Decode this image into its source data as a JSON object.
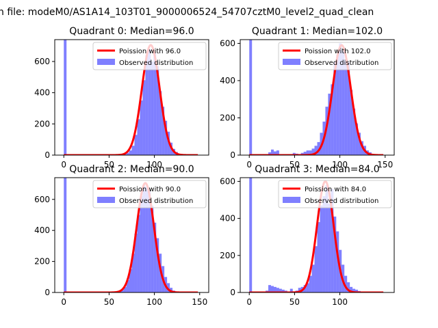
{
  "figure": {
    "suptitle": "n file: modeM0/AS1A14_103T01_9000006524_54707cztM0_level2_quad_clean"
  },
  "colors": {
    "hist": "#0000ff",
    "fit": "#ff0000",
    "axes": "#000000"
  },
  "chart_data": [
    {
      "type": "bar",
      "title": "Quadrant 0: Median=96.0",
      "xlim": [
        -10,
        160
      ],
      "ylim": [
        0,
        740
      ],
      "xticks": [
        0,
        50,
        100
      ],
      "yticks": [
        0,
        200,
        400,
        600
      ],
      "legend": {
        "position": "top-right",
        "fit_label": "Poission with 96.0",
        "hist_label": "Observed distribution"
      },
      "lambda": 96.0,
      "fit_peak": 705,
      "bin_width": 3,
      "bins": [
        0,
        66,
        69,
        72,
        75,
        78,
        81,
        84,
        87,
        90,
        93,
        96,
        99,
        102,
        105,
        108,
        111,
        114,
        117,
        120,
        123,
        126,
        129
      ],
      "counts": [
        740,
        5,
        15,
        30,
        60,
        130,
        230,
        350,
        480,
        640,
        680,
        600,
        655,
        570,
        410,
        310,
        220,
        150,
        80,
        40,
        20,
        8,
        3
      ]
    },
    {
      "type": "bar",
      "title": "Quadrant 1: Median=102.0",
      "xlim": [
        -10,
        160
      ],
      "ylim": [
        0,
        620
      ],
      "xticks": [
        0,
        50,
        100,
        150
      ],
      "yticks": [
        0,
        200,
        400,
        600
      ],
      "legend": {
        "position": "top-right",
        "fit_label": "Poission with 102.0",
        "hist_label": "Observed distribution"
      },
      "lambda": 102.0,
      "fit_peak": 590,
      "bin_width": 3,
      "bins": [
        0,
        18,
        21,
        24,
        27,
        30,
        45,
        48,
        51,
        54,
        57,
        60,
        63,
        66,
        69,
        72,
        75,
        78,
        81,
        84,
        87,
        90,
        93,
        96,
        99,
        102,
        105,
        108,
        111,
        114,
        117,
        120,
        123,
        126,
        129,
        132,
        135
      ],
      "counts": [
        620,
        5,
        15,
        30,
        20,
        25,
        5,
        12,
        8,
        5,
        12,
        18,
        25,
        25,
        35,
        50,
        70,
        120,
        180,
        260,
        330,
        380,
        500,
        540,
        600,
        560,
        510,
        500,
        350,
        250,
        170,
        120,
        75,
        50,
        25,
        15,
        5
      ]
    },
    {
      "type": "bar",
      "title": "Quadrant 2: Median=90.0",
      "xlim": [
        -10,
        160
      ],
      "ylim": [
        0,
        740
      ],
      "xticks": [
        0,
        50,
        100,
        150
      ],
      "yticks": [
        0,
        200,
        400,
        600
      ],
      "legend": {
        "position": "top-right",
        "fit_label": "Poission with 90.0",
        "hist_label": "Observed distribution"
      },
      "lambda": 90.0,
      "fit_peak": 705,
      "bin_width": 3,
      "bins": [
        0,
        60,
        63,
        66,
        69,
        72,
        75,
        78,
        81,
        84,
        87,
        90,
        93,
        96,
        99,
        102,
        105,
        108,
        111,
        114,
        117,
        120,
        123
      ],
      "counts": [
        740,
        5,
        15,
        35,
        80,
        150,
        250,
        380,
        500,
        620,
        690,
        680,
        650,
        560,
        450,
        350,
        250,
        170,
        100,
        60,
        30,
        12,
        5
      ]
    },
    {
      "type": "bar",
      "title": "Quadrant 3: Median=84.0",
      "xlim": [
        -10,
        160
      ],
      "ylim": [
        0,
        620
      ],
      "xticks": [
        0,
        50,
        100
      ],
      "yticks": [
        0,
        200,
        400,
        600
      ],
      "legend": {
        "position": "top-right",
        "fit_label": "Poission with 84.0",
        "hist_label": "Observed distribution"
      },
      "lambda": 84.0,
      "fit_peak": 600,
      "bin_width": 3,
      "bins": [
        0,
        18,
        21,
        24,
        27,
        30,
        33,
        36,
        39,
        45,
        51,
        54,
        57,
        60,
        63,
        66,
        69,
        72,
        75,
        78,
        81,
        84,
        87,
        90,
        93,
        96,
        99,
        102,
        105,
        108,
        111,
        114,
        117,
        120,
        123
      ],
      "counts": [
        620,
        10,
        40,
        35,
        30,
        25,
        20,
        15,
        10,
        20,
        10,
        25,
        30,
        40,
        50,
        90,
        150,
        250,
        380,
        470,
        520,
        580,
        480,
        560,
        410,
        330,
        230,
        150,
        90,
        55,
        30,
        20,
        15,
        8,
        3
      ]
    }
  ]
}
